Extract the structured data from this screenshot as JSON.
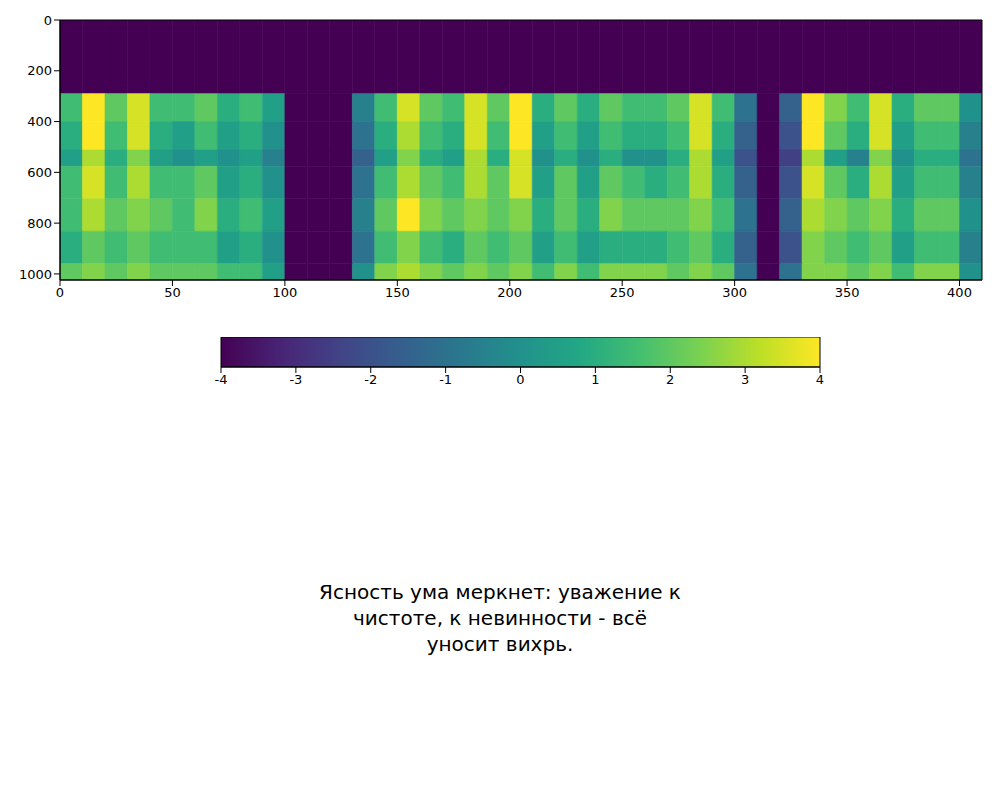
{
  "chart_data": {
    "type": "heatmap",
    "color": "viridis",
    "xlim": [
      0,
      410
    ],
    "ylim": [
      1024,
      0
    ],
    "xticks": [
      0,
      50,
      100,
      150,
      200,
      250,
      300,
      350,
      400
    ],
    "yticks": [
      0,
      200,
      400,
      600,
      800,
      1000
    ],
    "x_edges": [
      0,
      10,
      20,
      30,
      40,
      50,
      60,
      70,
      80,
      90,
      100,
      110,
      120,
      130,
      140,
      150,
      160,
      170,
      180,
      190,
      200,
      210,
      220,
      230,
      240,
      250,
      260,
      270,
      280,
      290,
      300,
      310,
      320,
      330,
      340,
      350,
      360,
      370,
      380,
      390,
      400,
      410
    ],
    "y_edges": [
      0,
      290,
      400,
      512,
      576,
      704,
      832,
      960,
      1024
    ],
    "cells": [
      [
        -4,
        -4,
        -4,
        -4,
        -4,
        -4,
        -4,
        -4,
        -4,
        -4,
        -4,
        -4,
        -4,
        -4,
        -4,
        -4,
        -4,
        -4,
        -4,
        -4,
        -4,
        -4,
        -4,
        -4,
        -4,
        -4,
        -4,
        -4,
        -4,
        -4,
        -4,
        -4,
        -4,
        -4,
        -4,
        -4,
        -4,
        -4,
        -4,
        -4,
        -4
      ],
      [
        1.5,
        4,
        2,
        3.5,
        1.5,
        1.5,
        2,
        1,
        1.5,
        0.5,
        -4,
        -4,
        -4,
        -0.5,
        1.5,
        3.5,
        2,
        1.5,
        3.5,
        2,
        4,
        1,
        2,
        1,
        2,
        1.5,
        1.5,
        2,
        3.5,
        1.5,
        -1,
        -4,
        -1.5,
        4,
        2.5,
        1.5,
        3.5,
        1,
        2,
        2,
        0
      ],
      [
        1,
        4,
        1.5,
        3.5,
        1,
        0.5,
        1.5,
        0.5,
        1,
        0,
        -4,
        -4,
        -4,
        -1,
        1,
        3,
        1.5,
        1,
        3.5,
        1.5,
        4,
        0.5,
        1.5,
        0.5,
        1.5,
        1,
        1,
        1.5,
        3.5,
        1,
        -1.5,
        -4,
        -2,
        4,
        2,
        1,
        3.5,
        0.5,
        1.5,
        1.5,
        -0.5
      ],
      [
        0.5,
        3,
        1,
        2.5,
        0.5,
        0,
        0.5,
        0,
        0.5,
        -0.5,
        -4,
        -4,
        -4,
        -1.5,
        0.5,
        2.5,
        1,
        0.5,
        3,
        1,
        3.5,
        0,
        1,
        0,
        1,
        0,
        0,
        1,
        3,
        0.5,
        -2,
        -4,
        -2.5,
        3,
        0.5,
        -0.5,
        2.5,
        0,
        1,
        1,
        -1
      ],
      [
        1.5,
        3.5,
        1.5,
        3,
        1.5,
        1.5,
        2,
        0.5,
        1,
        0,
        -4,
        -4,
        -4,
        -1,
        1.5,
        3,
        2,
        1.5,
        3,
        2,
        3.5,
        0.5,
        2,
        0.5,
        2,
        1.5,
        1,
        1.5,
        3,
        1,
        -1.5,
        -4,
        -2,
        3.5,
        2,
        1,
        3,
        0.5,
        1.5,
        1.5,
        -0.5
      ],
      [
        1.5,
        3,
        2,
        2.5,
        2,
        1.5,
        2.5,
        1,
        1.5,
        0.5,
        -4,
        -4,
        -4,
        -0.5,
        2,
        4,
        2.5,
        2,
        2.5,
        2,
        2.5,
        1,
        2,
        1,
        2.5,
        2,
        2,
        2,
        2.5,
        1.5,
        -1,
        -4,
        -1.5,
        3,
        2.5,
        2,
        2.5,
        1,
        2,
        2,
        0
      ],
      [
        1,
        2,
        1.5,
        2,
        1.5,
        1.5,
        1.5,
        0.5,
        1,
        0,
        -4,
        -4,
        -4,
        -1,
        1.5,
        2.5,
        1.5,
        1,
        2,
        1.5,
        2,
        0.5,
        1.5,
        0.5,
        1,
        1,
        1,
        1.5,
        2,
        1,
        -1.5,
        -4,
        -2,
        2.5,
        2,
        1.5,
        2,
        0.5,
        1.5,
        1.5,
        -0.5
      ],
      [
        2,
        2.5,
        2,
        2.5,
        2,
        2,
        2,
        1.5,
        1.5,
        0.5,
        -4,
        -4,
        -4,
        0,
        2.5,
        3,
        2.5,
        2,
        2.5,
        2,
        2.5,
        1.5,
        2.5,
        1.5,
        2.5,
        2.5,
        2.5,
        2,
        2.5,
        2,
        -1,
        -4,
        -1,
        2.5,
        2.5,
        2,
        2.5,
        1.5,
        2.5,
        2.5,
        0
      ]
    ],
    "colorbar": {
      "range": [
        -4,
        4
      ],
      "ticks": [
        -4,
        -3,
        -2,
        -1,
        0,
        1,
        2,
        3,
        4
      ]
    },
    "caption": [
      "Ясность ума меркнет: уважение к",
      "чистоте, к невинности - всё",
      "уносит вихрь."
    ]
  }
}
